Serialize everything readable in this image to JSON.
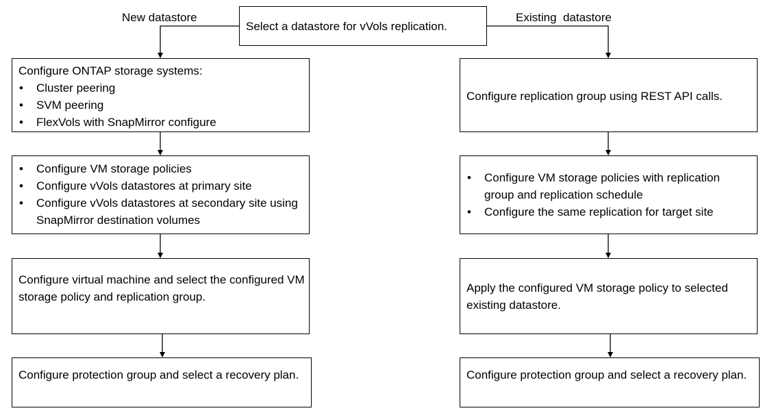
{
  "branches": {
    "left": "New datastore",
    "right": "Existing  datastore"
  },
  "start": "Select a datastore for vVols replication.",
  "left_column": {
    "box1": {
      "heading": "Configure ONTAP storage systems:",
      "items": [
        "Cluster peering",
        "SVM peering",
        "FlexVols with SnapMirror configure"
      ]
    },
    "box2": {
      "items": [
        "Configure VM storage policies",
        "Configure vVols datastores at primary site",
        "Configure vVols datastores at secondary site using SnapMirror destination volumes"
      ]
    },
    "box3": "Configure virtual machine and select the configured VM storage policy and replication group.",
    "box4": "Configure protection group and select a recovery plan."
  },
  "right_column": {
    "box1": "Configure replication group using REST API calls.",
    "box2": {
      "items": [
        "Configure VM storage policies with replication group and replication schedule",
        "Configure the same replication for target site"
      ]
    },
    "box3": "Apply the configured VM storage policy to selected existing datastore.",
    "box4": "Configure protection group and select a recovery plan."
  },
  "bullet_glyph": "•"
}
